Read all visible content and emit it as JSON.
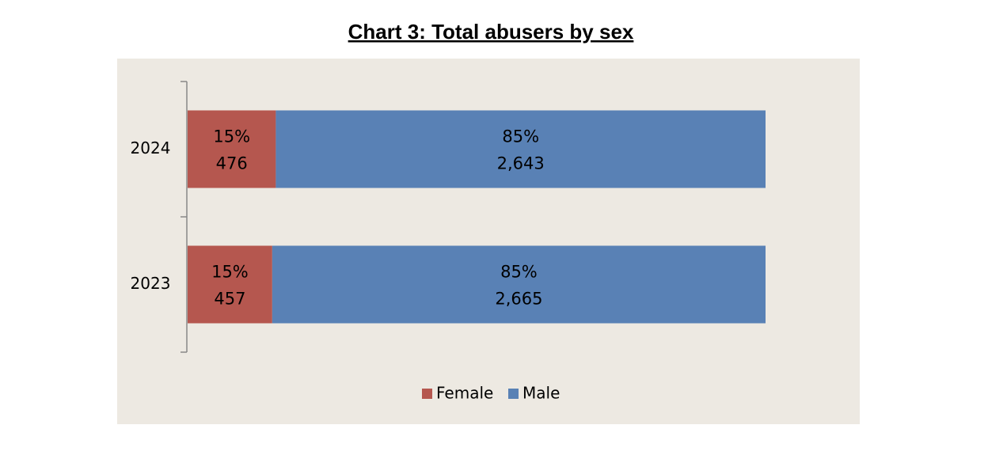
{
  "chart_data": {
    "type": "bar",
    "orientation": "horizontal",
    "stacked": "percent",
    "title": "Chart 3: Total abusers by sex",
    "categories": [
      "2024",
      "2023"
    ],
    "series": [
      {
        "name": "Female",
        "color": "#b5574f",
        "values": [
          476,
          457
        ],
        "value_labels": [
          "476",
          "457"
        ],
        "percent_labels": [
          "15%",
          "15%"
        ]
      },
      {
        "name": "Male",
        "color": "#5981b5",
        "values": [
          2643,
          2665
        ],
        "value_labels": [
          "2,643",
          "2,665"
        ],
        "percent_labels": [
          "85%",
          "85%"
        ]
      }
    ],
    "legend": "bottom"
  }
}
